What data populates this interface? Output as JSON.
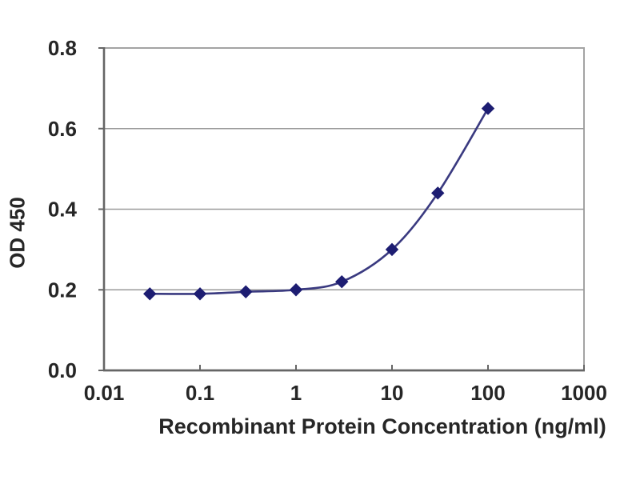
{
  "chart_data": {
    "type": "line",
    "title": "",
    "xlabel": "Recombinant Protein Concentration (ng/ml)",
    "ylabel": "OD 450",
    "x_scale": "log",
    "xlim": [
      0.01,
      1000
    ],
    "ylim": [
      0,
      0.8
    ],
    "x_tick_values": [
      0.01,
      0.1,
      1,
      10,
      100,
      1000
    ],
    "x_tick_labels": [
      "0.01",
      "0.1",
      "1",
      "10",
      "100",
      "1000"
    ],
    "y_tick_values": [
      0,
      0.2,
      0.4,
      0.6,
      0.8
    ],
    "y_tick_labels": [
      "0.0",
      "0.2",
      "0.4",
      "0.6",
      "0.8"
    ],
    "grid": "horizontal",
    "legend": "none",
    "series": [
      {
        "marker": "diamond",
        "x": [
          0.03,
          0.1,
          0.3,
          1,
          3,
          10,
          30,
          100
        ],
        "y": [
          0.19,
          0.19,
          0.195,
          0.2,
          0.22,
          0.3,
          0.44,
          0.65
        ]
      }
    ],
    "colors": {
      "line": "#3a3a80",
      "marker": "#1d1d72",
      "grid": "#9a9a9a",
      "frame": "#a3a3a3",
      "axis": "#666666",
      "text": "#262626",
      "background": "#ffffff"
    }
  }
}
